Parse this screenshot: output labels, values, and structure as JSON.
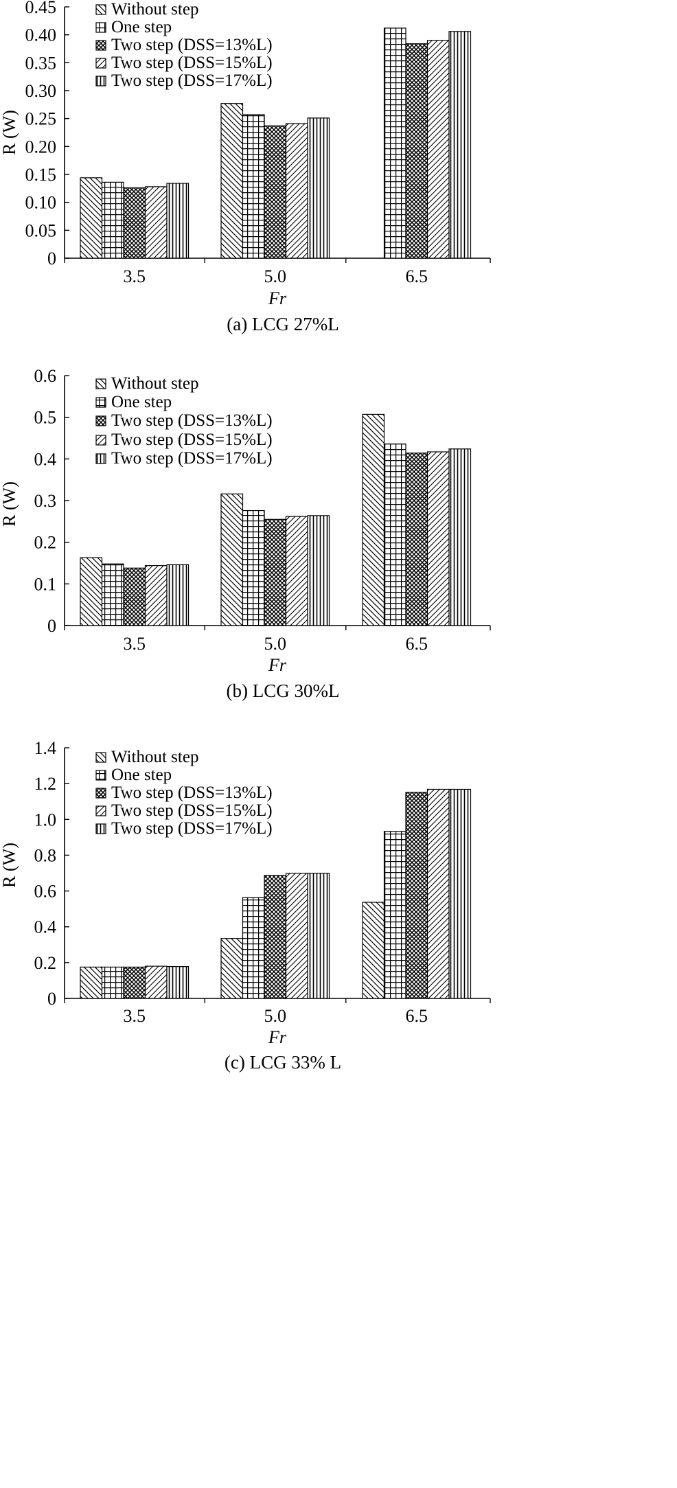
{
  "chart_data": [
    {
      "type": "bar",
      "caption": "(a) LCG 27%L",
      "xlabel": "Fr",
      "ylabel": "R (W)",
      "categories": [
        "3.5",
        "5.0",
        "6.5"
      ],
      "ylim": [
        0,
        0.45
      ],
      "yticks": [
        "0",
        "0.05",
        "0.10",
        "0.15",
        "0.20",
        "0.25",
        "0.30",
        "0.35",
        "0.40",
        "0.45"
      ],
      "series": [
        {
          "name": "Without step",
          "values": [
            0.144,
            0.277,
            null
          ]
        },
        {
          "name": "One step",
          "values": [
            0.136,
            0.257,
            0.412
          ]
        },
        {
          "name": "Two step (DSS=13%L)",
          "values": [
            0.126,
            0.237,
            0.384
          ]
        },
        {
          "name": "Two step (DSS=15%L)",
          "values": [
            0.128,
            0.241,
            0.39
          ]
        },
        {
          "name": "Two step (DSS=17%L)",
          "values": [
            0.134,
            0.251,
            0.406
          ]
        }
      ]
    },
    {
      "type": "bar",
      "caption": "(b) LCG 30%L",
      "xlabel": "Fr",
      "ylabel": "R (W)",
      "categories": [
        "3.5",
        "5.0",
        "6.5"
      ],
      "ylim": [
        0,
        0.6
      ],
      "yticks": [
        "0",
        "0.1",
        "0.2",
        "0.3",
        "0.4",
        "0.5",
        "0.6"
      ],
      "series": [
        {
          "name": "Without step",
          "values": [
            0.163,
            0.316,
            0.507
          ]
        },
        {
          "name": "One step",
          "values": [
            0.148,
            0.276,
            0.436
          ]
        },
        {
          "name": "Two step (DSS=13%L)",
          "values": [
            0.138,
            0.255,
            0.414
          ]
        },
        {
          "name": "Two step (DSS=15%L)",
          "values": [
            0.144,
            0.262,
            0.417
          ]
        },
        {
          "name": "Two step (DSS=17%L)",
          "values": [
            0.146,
            0.264,
            0.424
          ]
        }
      ]
    },
    {
      "type": "bar",
      "caption": "(c) LCG 33% L",
      "xlabel": "Fr",
      "ylabel": "R (W)",
      "categories": [
        "3.5",
        "5.0",
        "6.5"
      ],
      "ylim": [
        0,
        1.4
      ],
      "yticks": [
        "0",
        "0.2",
        "0.4",
        "0.6",
        "0.8",
        "1.0",
        "1.2",
        "1.4"
      ],
      "series": [
        {
          "name": "Without step",
          "values": [
            0.175,
            0.335,
            0.537
          ]
        },
        {
          "name": "One step",
          "values": [
            0.175,
            0.563,
            0.933
          ]
        },
        {
          "name": "Two step (DSS=13%L)",
          "values": [
            0.175,
            0.687,
            1.151
          ]
        },
        {
          "name": "Two step (DSS=15%L)",
          "values": [
            0.18,
            0.699,
            1.168
          ]
        },
        {
          "name": "Two step (DSS=17%L)",
          "values": [
            0.178,
            0.699,
            1.168
          ]
        }
      ]
    }
  ]
}
